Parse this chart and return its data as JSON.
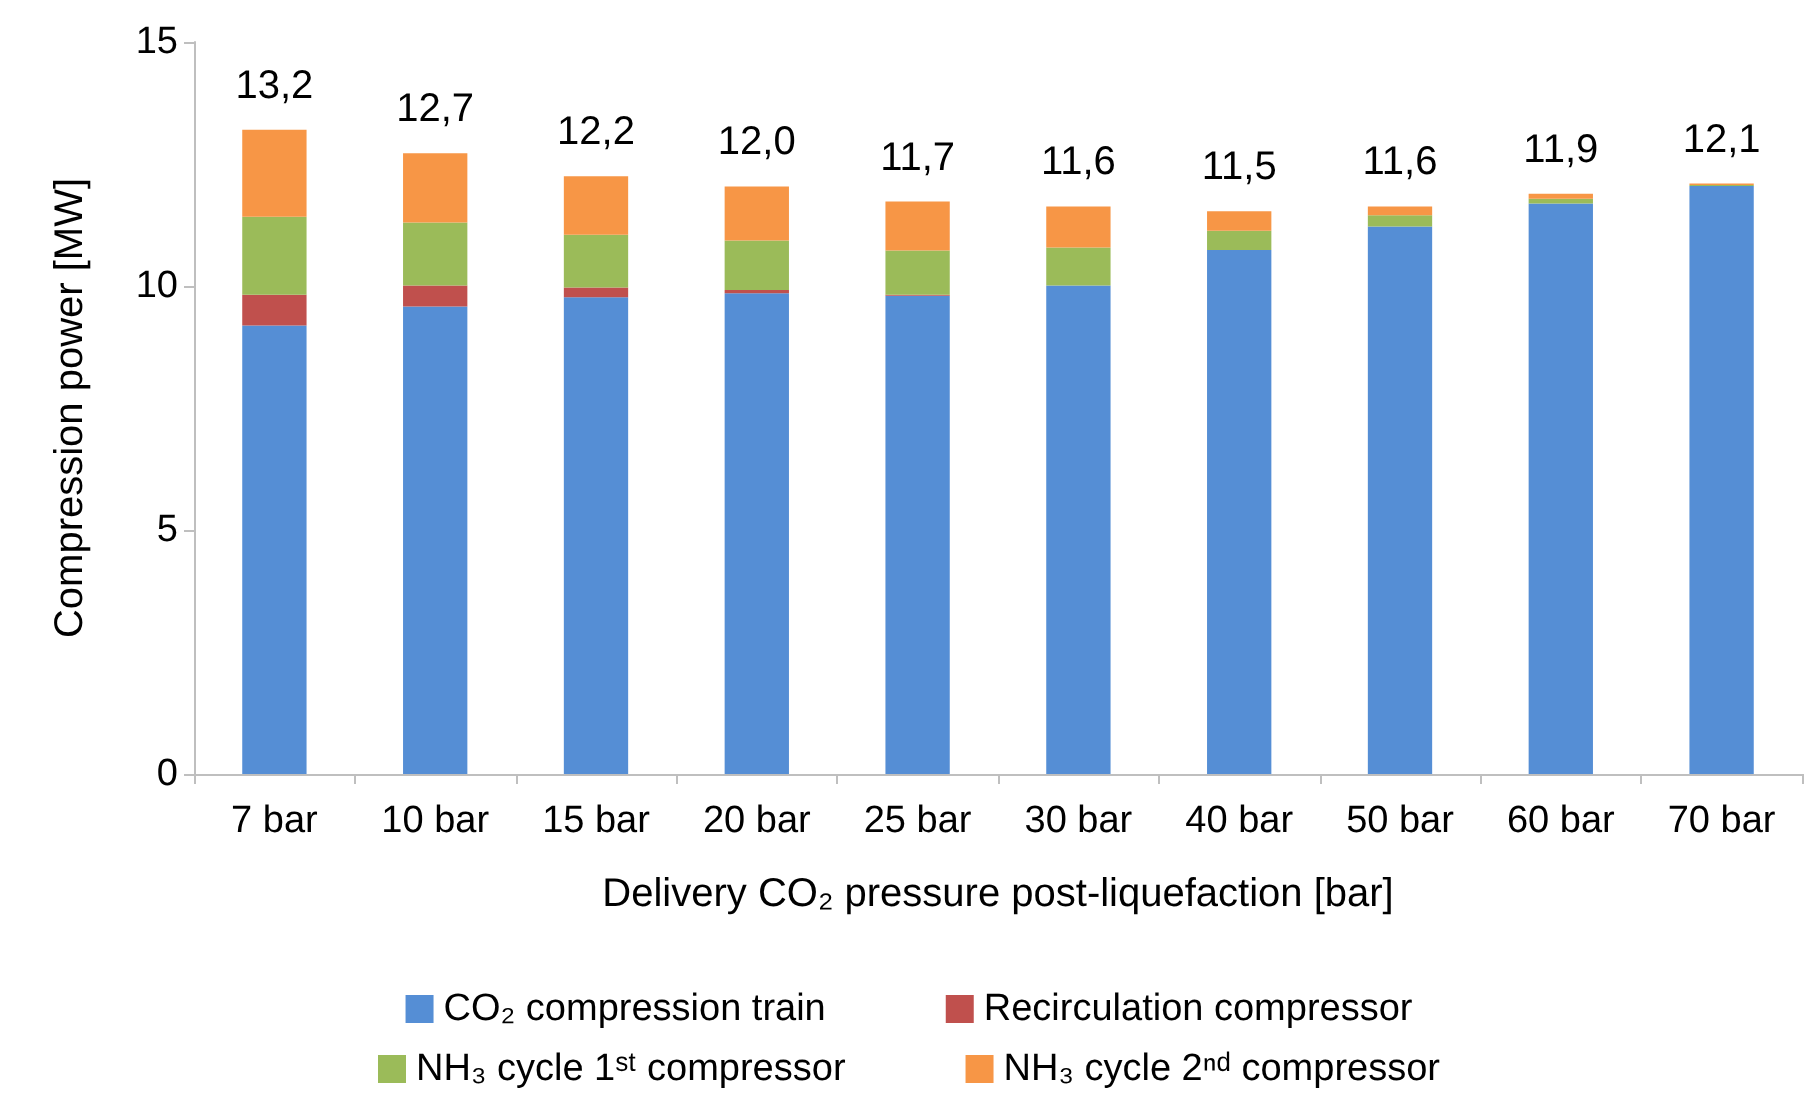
{
  "chart_data": {
    "type": "bar",
    "stacked": true,
    "xlabel": "Delivery CO₂ pressure post-liquefaction [bar]",
    "ylabel": "Compression power [MW]",
    "categories": [
      "7 bar",
      "10 bar",
      "15 bar",
      "20 bar",
      "25 bar",
      "30 bar",
      "40 bar",
      "50 bar",
      "60 bar",
      "70 bar"
    ],
    "series": [
      {
        "name": "CO₂ compression train",
        "color": "#558ed5",
        "values": [
          9.19,
          9.58,
          9.77,
          9.85,
          9.8,
          10.01,
          10.74,
          11.22,
          11.69,
          12.05
        ]
      },
      {
        "name": "Recirculation compressor",
        "color": "#c0504d",
        "values": [
          0.63,
          0.43,
          0.2,
          0.07,
          0.02,
          0,
          0,
          0,
          0,
          0
        ]
      },
      {
        "name": "NH₃ cycle 1ˢᵗ compressor",
        "color": "#9bbb59",
        "values": [
          1.6,
          1.29,
          1.08,
          1.01,
          0.91,
          0.78,
          0.39,
          0.23,
          0.1,
          0.02
        ]
      },
      {
        "name": "NH₃ cycle 2ⁿᵈ compressor",
        "color": "#f79646",
        "values": [
          1.78,
          1.42,
          1.2,
          1.11,
          1.0,
          0.84,
          0.4,
          0.18,
          0.1,
          0.03
        ]
      }
    ],
    "totals": [
      "13,2",
      "12,7",
      "12,2",
      "12,0",
      "11,7",
      "11,6",
      "11,5",
      "11,6",
      "11,9",
      "12,1"
    ],
    "ylim": [
      0,
      15
    ],
    "yticks": [
      0,
      5,
      10,
      15
    ],
    "grid": false,
    "legend": "bottom"
  }
}
